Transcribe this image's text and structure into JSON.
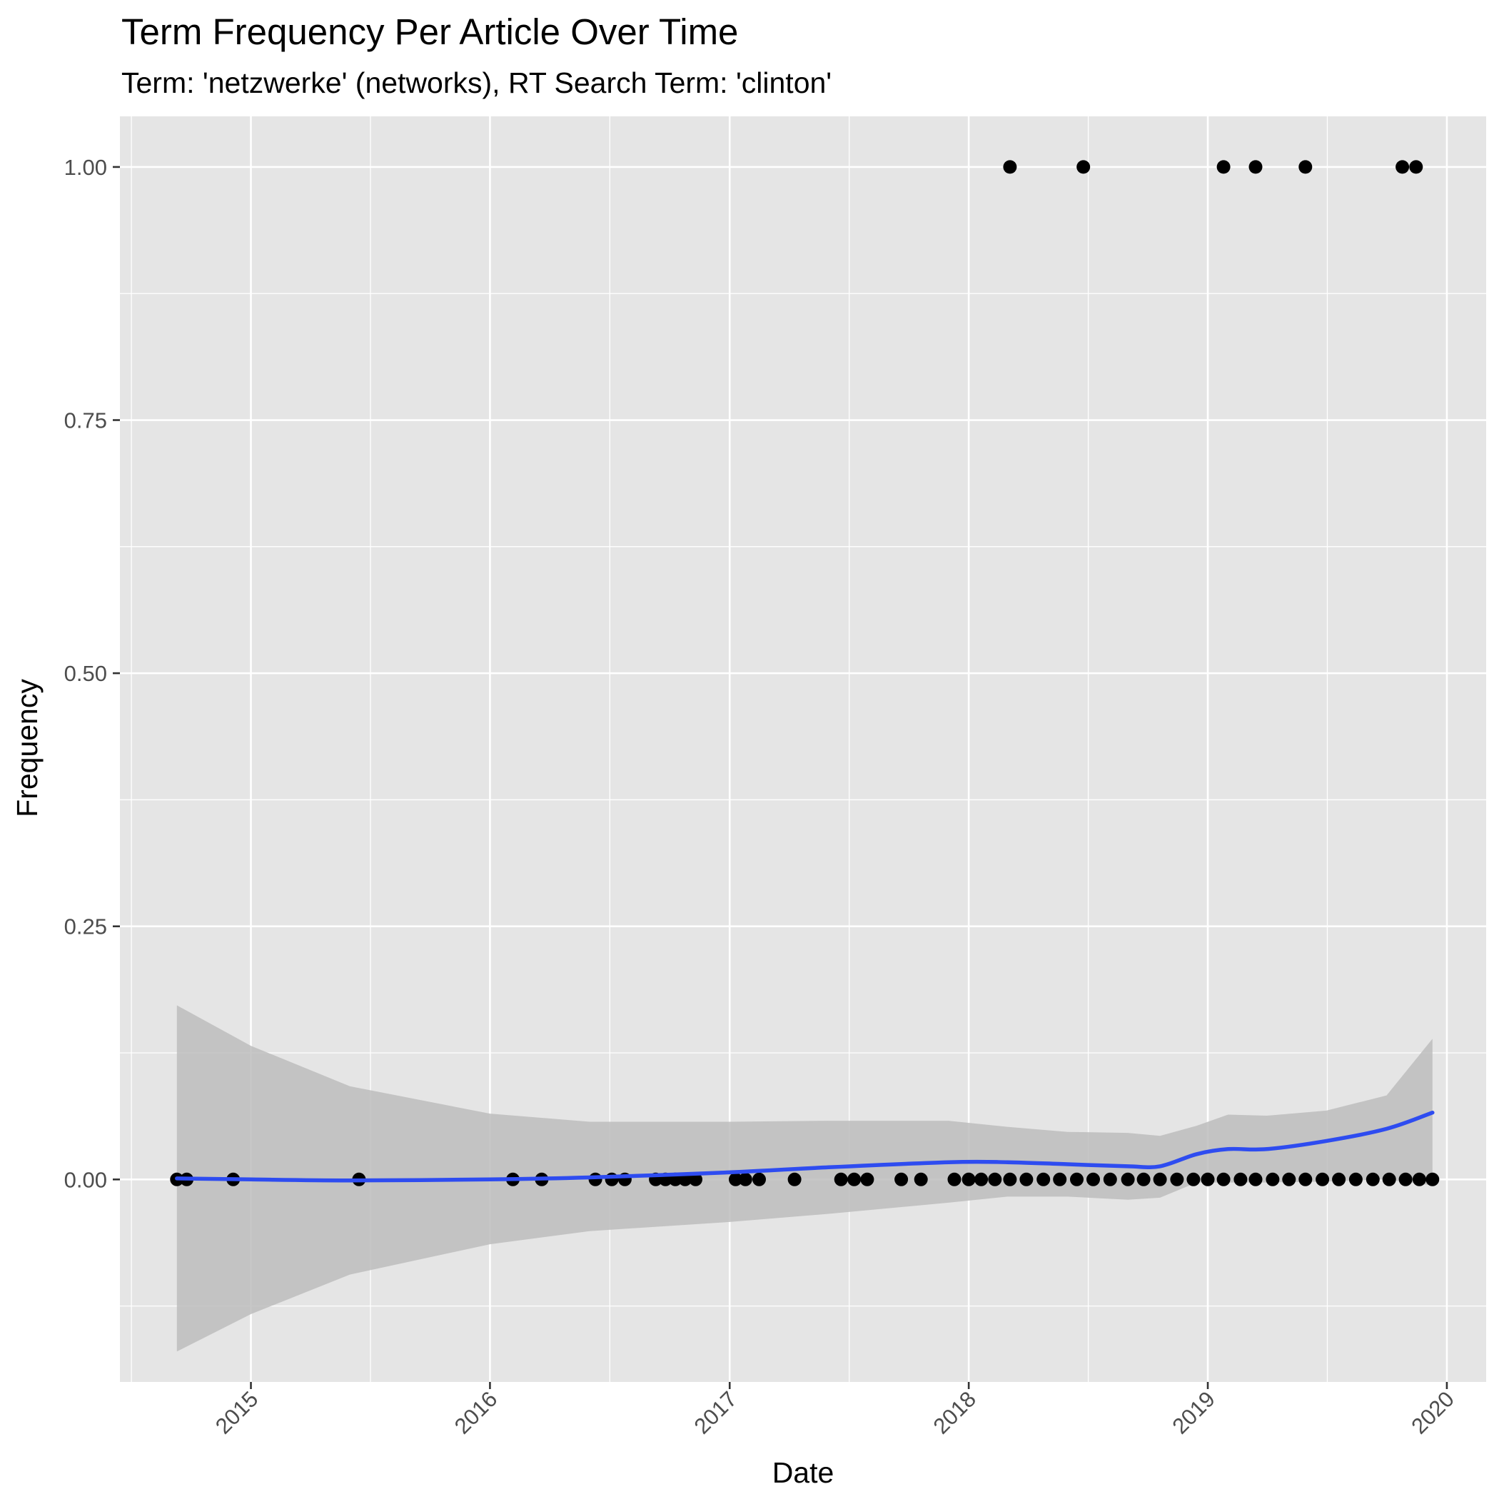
{
  "chart_data": {
    "type": "scatter",
    "title": "Term Frequency Per Article Over Time",
    "subtitle": "Term: 'netzwerke' (networks), RT Search Term: 'clinton'",
    "xlabel": "Date",
    "ylabel": "Frequency",
    "x_axis_type": "date",
    "xlim": [
      "2014-06-15",
      "2020-03-01"
    ],
    "ylim": [
      -0.2,
      1.05
    ],
    "x_ticks": [
      "2015",
      "2016",
      "2017",
      "2018",
      "2019",
      "2020"
    ],
    "x_tick_dates": [
      "2015-01-01",
      "2016-01-01",
      "2017-01-01",
      "2018-01-01",
      "2019-01-01",
      "2020-01-01"
    ],
    "y_ticks": [
      "0.00",
      "0.25",
      "0.50",
      "0.75",
      "1.00"
    ],
    "y_tick_values": [
      0,
      0.25,
      0.5,
      0.75,
      1.0
    ],
    "grid": true,
    "colors": {
      "panel": "#e5e5e5",
      "grid": "#ffffff",
      "points": "#000000",
      "smooth": "#2e4cf0",
      "band": "#bdbdbd"
    },
    "series": [
      {
        "type": "scatter",
        "x": [
          "2014-09-10",
          "2014-09-25",
          "2014-12-05",
          "2015-06-15",
          "2016-02-05",
          "2016-03-20",
          "2016-06-10",
          "2016-07-05",
          "2016-07-25",
          "2016-09-10",
          "2016-09-25",
          "2016-10-10",
          "2016-10-25",
          "2016-11-10",
          "2017-01-10",
          "2017-01-25",
          "2017-02-15",
          "2017-04-10",
          "2017-06-20",
          "2017-07-10",
          "2017-07-30",
          "2017-09-20",
          "2017-10-20",
          "2017-12-10",
          "2018-01-01",
          "2018-01-20",
          "2018-02-10",
          "2018-03-05",
          "2018-03-30",
          "2018-04-25",
          "2018-05-20",
          "2018-06-15",
          "2018-07-10",
          "2018-08-05",
          "2018-09-01",
          "2018-09-25",
          "2018-10-20",
          "2018-11-15",
          "2018-12-10",
          "2019-01-01",
          "2019-01-25",
          "2019-02-20",
          "2019-03-15",
          "2019-04-10",
          "2019-05-05",
          "2019-05-30",
          "2019-06-25",
          "2019-07-20",
          "2019-08-15",
          "2019-09-10",
          "2019-10-05",
          "2019-10-30",
          "2019-11-20",
          "2019-12-10",
          "2018-03-05",
          "2018-06-25",
          "2019-01-25",
          "2019-03-15",
          "2019-05-30",
          "2019-10-25",
          "2019-11-15"
        ],
        "y": [
          0,
          0,
          0,
          0,
          0,
          0,
          0,
          0,
          0,
          0,
          0,
          0,
          0,
          0,
          0,
          0,
          0,
          0,
          0,
          0,
          0,
          0,
          0,
          0,
          0,
          0,
          0,
          0,
          0,
          0,
          0,
          0,
          0,
          0,
          0,
          0,
          0,
          0,
          0,
          0,
          0,
          0,
          0,
          0,
          0,
          0,
          0,
          0,
          0,
          0,
          0,
          0,
          0,
          0,
          1,
          1,
          1,
          1,
          1,
          1,
          1
        ]
      },
      {
        "type": "line",
        "method": "smooth",
        "x": [
          "2014-09-10",
          "2015-01-01",
          "2015-06-01",
          "2016-01-01",
          "2016-06-01",
          "2017-01-01",
          "2017-06-01",
          "2017-12-01",
          "2018-03-01",
          "2018-06-01",
          "2018-09-01",
          "2018-10-20",
          "2018-12-15",
          "2019-02-01",
          "2019-04-01",
          "2019-07-01",
          "2019-10-01",
          "2019-12-10"
        ],
        "y": [
          0.001,
          0.0,
          -0.001,
          0.0,
          0.002,
          0.007,
          0.012,
          0.017,
          0.017,
          0.015,
          0.013,
          0.013,
          0.025,
          0.03,
          0.03,
          0.038,
          0.05,
          0.066
        ]
      },
      {
        "type": "area",
        "method": "confidence-band",
        "x": [
          "2014-09-10",
          "2015-01-01",
          "2015-06-01",
          "2016-01-01",
          "2016-06-01",
          "2017-01-01",
          "2017-06-01",
          "2017-12-01",
          "2018-03-01",
          "2018-06-01",
          "2018-09-01",
          "2018-10-20",
          "2018-12-15",
          "2019-02-01",
          "2019-04-01",
          "2019-07-01",
          "2019-10-01",
          "2019-12-10"
        ],
        "y_upper": [
          0.172,
          0.132,
          0.092,
          0.065,
          0.057,
          0.057,
          0.058,
          0.058,
          0.052,
          0.047,
          0.046,
          0.043,
          0.053,
          0.064,
          0.063,
          0.068,
          0.083,
          0.139
        ],
        "y_lower": [
          -0.17,
          -0.133,
          -0.094,
          -0.064,
          -0.051,
          -0.042,
          -0.034,
          -0.023,
          -0.017,
          -0.017,
          -0.02,
          -0.018,
          -0.003,
          -0.003,
          -0.003,
          -0.002,
          0.0,
          -0.006
        ]
      }
    ]
  }
}
